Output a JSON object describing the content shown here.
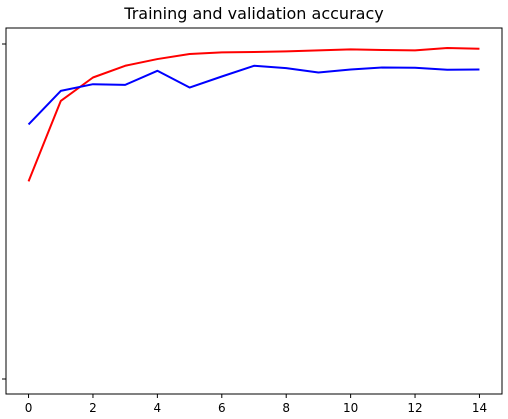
{
  "chart_data": {
    "type": "line",
    "title": "Training and validation accuracy",
    "xlabel": "",
    "ylabel": "",
    "x": [
      0,
      1,
      2,
      3,
      4,
      5,
      6,
      7,
      8,
      9,
      10,
      11,
      12,
      13,
      14
    ],
    "xlim": [
      -0.7,
      14.7
    ],
    "ylim": [
      0.0,
      1.0
    ],
    "x_ticks": [
      0,
      2,
      4,
      6,
      8,
      10,
      12,
      14
    ],
    "y_ticks_unlabeled": [
      0.0,
      1.0
    ],
    "grid": false,
    "series": [
      {
        "color": "#ff0000",
        "values": [
          0.59,
          0.83,
          0.9,
          0.935,
          0.955,
          0.97,
          0.975,
          0.976,
          0.978,
          0.981,
          0.984,
          0.982,
          0.981,
          0.988,
          0.986
        ]
      },
      {
        "color": "#0000ff",
        "values": [
          0.76,
          0.86,
          0.88,
          0.878,
          0.92,
          0.87,
          0.903,
          0.935,
          0.928,
          0.915,
          0.924,
          0.93,
          0.929,
          0.923,
          0.924
        ]
      }
    ]
  }
}
